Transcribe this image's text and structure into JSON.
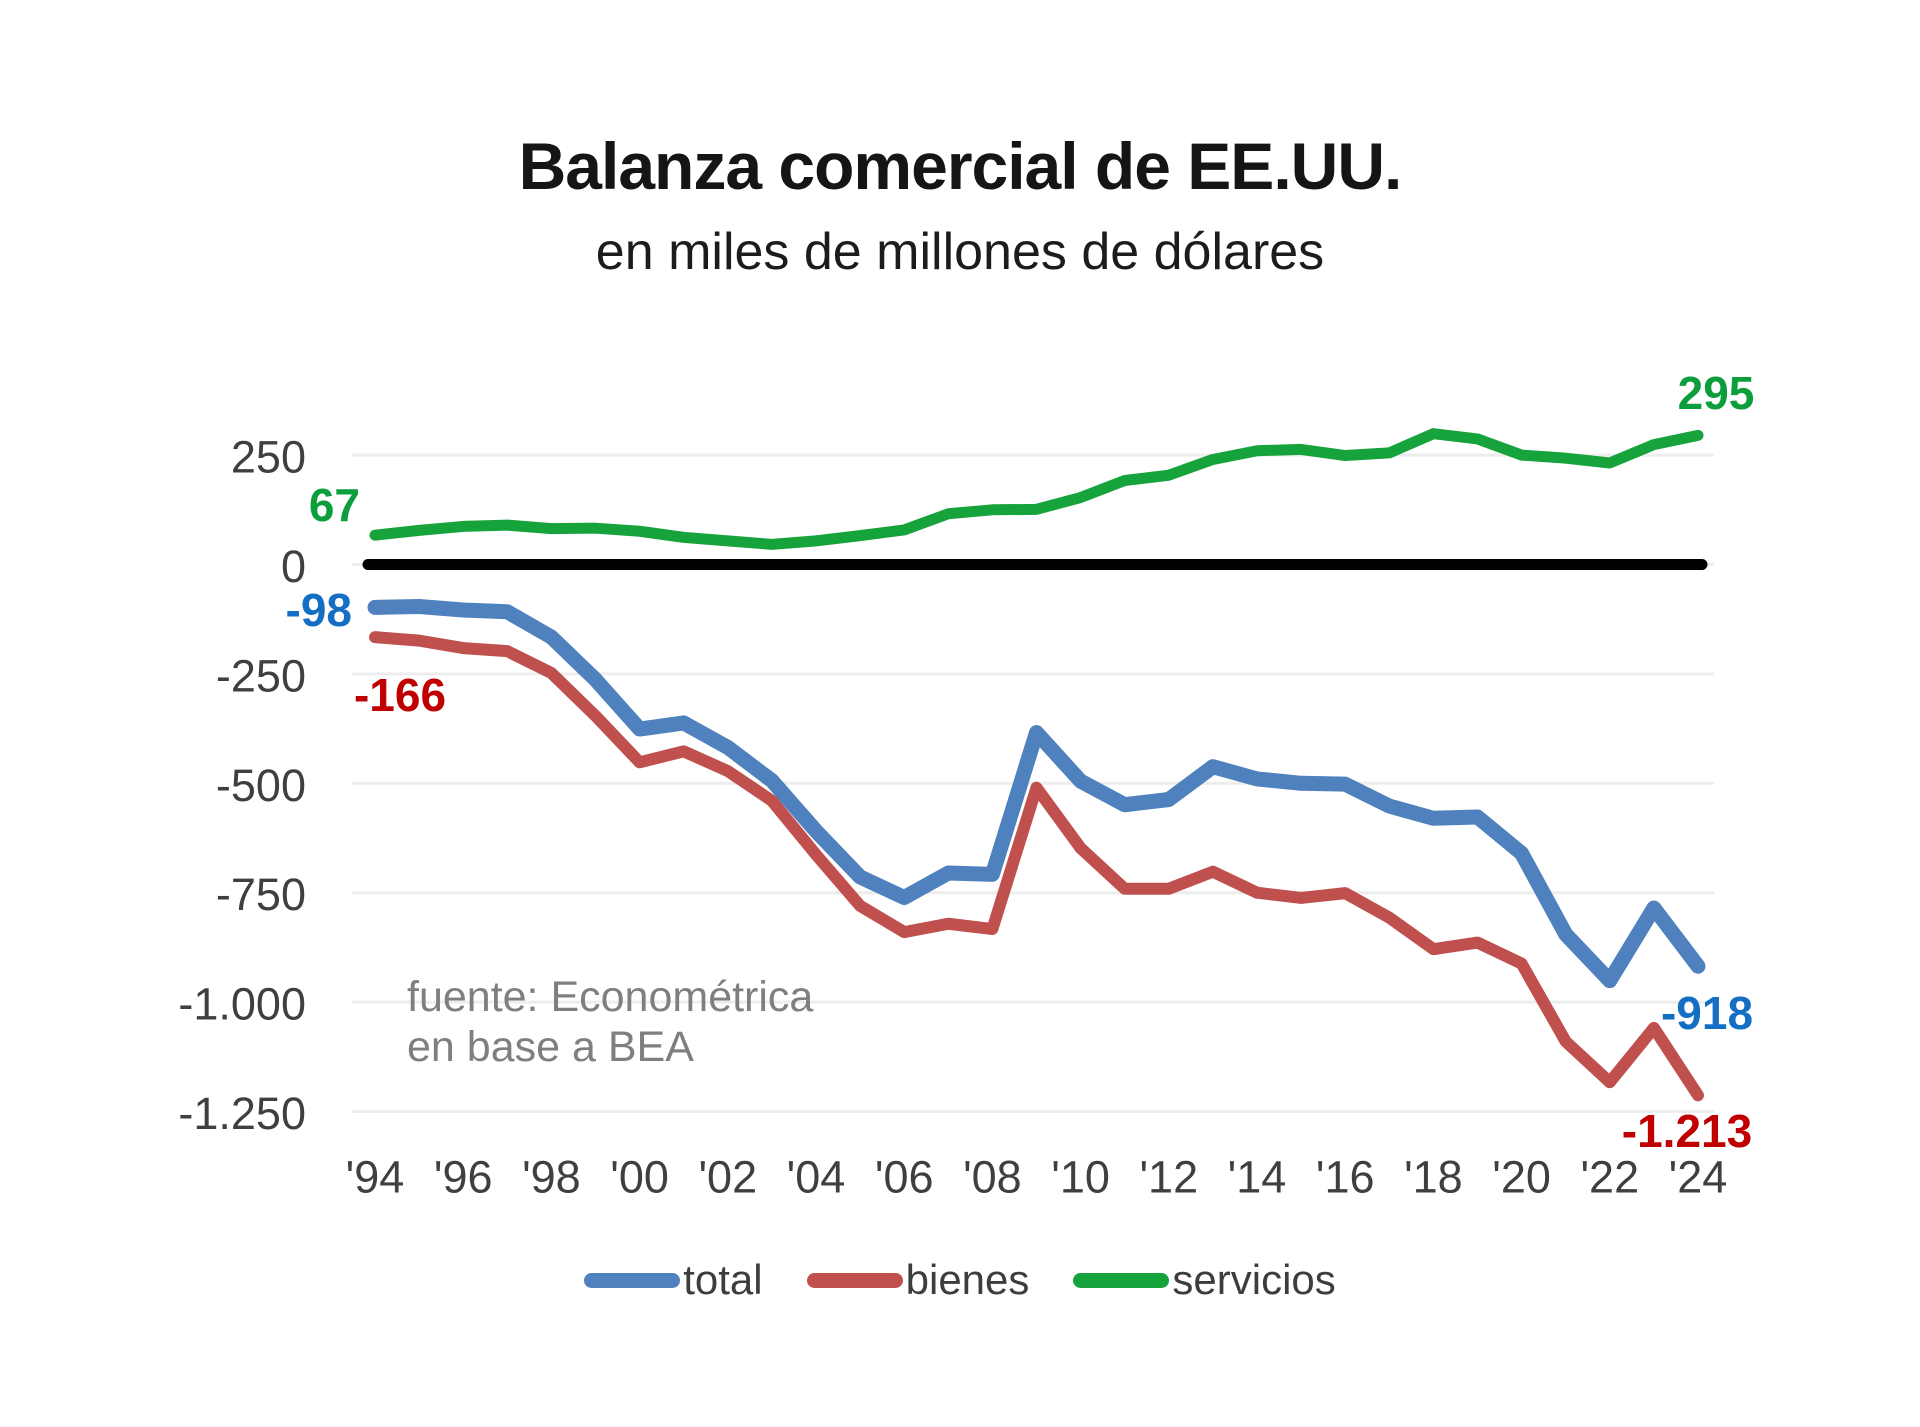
{
  "title": "Balanza comercial de EE.UU.",
  "subtitle": "en miles de millones de dólares",
  "source": {
    "line1": "fuente: Econométrica",
    "line2": "en base a BEA"
  },
  "legend": [
    {
      "label": "total",
      "color": "#4e81bd"
    },
    {
      "label": "bienes",
      "color": "#c0504d"
    },
    {
      "label": "servicios",
      "color": "#17a33c"
    }
  ],
  "chart_data": {
    "type": "line",
    "title": "Balanza comercial de EE.UU.",
    "subtitle": "en miles de millones de dólares",
    "unit": "miles de millones de dólares",
    "grid": true,
    "legend_position": "bottom",
    "ylim": [
      -1250,
      250
    ],
    "x": [
      1994,
      1995,
      1996,
      1997,
      1998,
      1999,
      2000,
      2001,
      2002,
      2003,
      2004,
      2005,
      2006,
      2007,
      2008,
      2009,
      2010,
      2011,
      2012,
      2013,
      2014,
      2015,
      2016,
      2017,
      2018,
      2019,
      2020,
      2021,
      2022,
      2023,
      2024
    ],
    "x_ticks": [
      {
        "value": 1994,
        "label": "'94"
      },
      {
        "value": 1996,
        "label": "'96"
      },
      {
        "value": 1998,
        "label": "'98"
      },
      {
        "value": 2000,
        "label": "'00"
      },
      {
        "value": 2002,
        "label": "'02"
      },
      {
        "value": 2004,
        "label": "'04"
      },
      {
        "value": 2006,
        "label": "'06"
      },
      {
        "value": 2008,
        "label": "'08"
      },
      {
        "value": 2010,
        "label": "'10"
      },
      {
        "value": 2012,
        "label": "'12"
      },
      {
        "value": 2014,
        "label": "'14"
      },
      {
        "value": 2016,
        "label": "'16"
      },
      {
        "value": 2018,
        "label": "'18"
      },
      {
        "value": 2020,
        "label": "'20"
      },
      {
        "value": 2022,
        "label": "'22"
      },
      {
        "value": 2024,
        "label": "'24"
      }
    ],
    "y_ticks": [
      {
        "value": 250,
        "label": "250"
      },
      {
        "value": 0,
        "label": "0"
      },
      {
        "value": -250,
        "label": "-250"
      },
      {
        "value": -500,
        "label": "-500"
      },
      {
        "value": -750,
        "label": "-750"
      },
      {
        "value": -1000,
        "label": "-1.000"
      },
      {
        "value": -1250,
        "label": "-1.250"
      }
    ],
    "zero_line": {
      "color": "#000000"
    },
    "grid_color": "#ededed",
    "series": [
      {
        "name": "total",
        "color": "#4e81bd",
        "stroke_width": 15,
        "values": [
          -98,
          -96,
          -104,
          -108,
          -166,
          -263,
          -376,
          -362,
          -418,
          -494,
          -609,
          -714,
          -761,
          -705,
          -708,
          -384,
          -495,
          -549,
          -537,
          -462,
          -490,
          -500,
          -502,
          -552,
          -580,
          -577,
          -660,
          -845,
          -951,
          -785,
          -918
        ]
      },
      {
        "name": "bienes",
        "color": "#c0504d",
        "stroke_width": 12,
        "values": [
          -166,
          -174,
          -191,
          -198,
          -248,
          -346,
          -452,
          -427,
          -472,
          -540,
          -663,
          -780,
          -840,
          -821,
          -833,
          -510,
          -648,
          -741,
          -741,
          -702,
          -750,
          -762,
          -751,
          -807,
          -879,
          -864,
          -912,
          -1090,
          -1183,
          -1059,
          -1213
        ]
      },
      {
        "name": "servicios",
        "color": "#17a33c",
        "stroke_width": 11,
        "values": [
          67,
          78,
          87,
          90,
          82,
          83,
          76,
          62,
          54,
          46,
          54,
          66,
          79,
          116,
          125,
          126,
          153,
          192,
          204,
          240,
          260,
          263,
          249,
          255,
          299,
          287,
          250,
          243,
          232,
          274,
          295
        ]
      }
    ],
    "annotations": [
      {
        "text": "67",
        "color": "#0c9e3c",
        "series": "servicios",
        "point": "first"
      },
      {
        "text": "-98",
        "color": "#146fc4",
        "series": "total",
        "point": "first"
      },
      {
        "text": "-166",
        "color": "#c00000",
        "series": "bienes",
        "point": "first"
      },
      {
        "text": "295",
        "color": "#0c9e3c",
        "series": "servicios",
        "point": "last"
      },
      {
        "text": "-918",
        "color": "#146fc4",
        "series": "total",
        "point": "last"
      },
      {
        "text": "-1.213",
        "color": "#c00000",
        "series": "bienes",
        "point": "last"
      }
    ]
  }
}
